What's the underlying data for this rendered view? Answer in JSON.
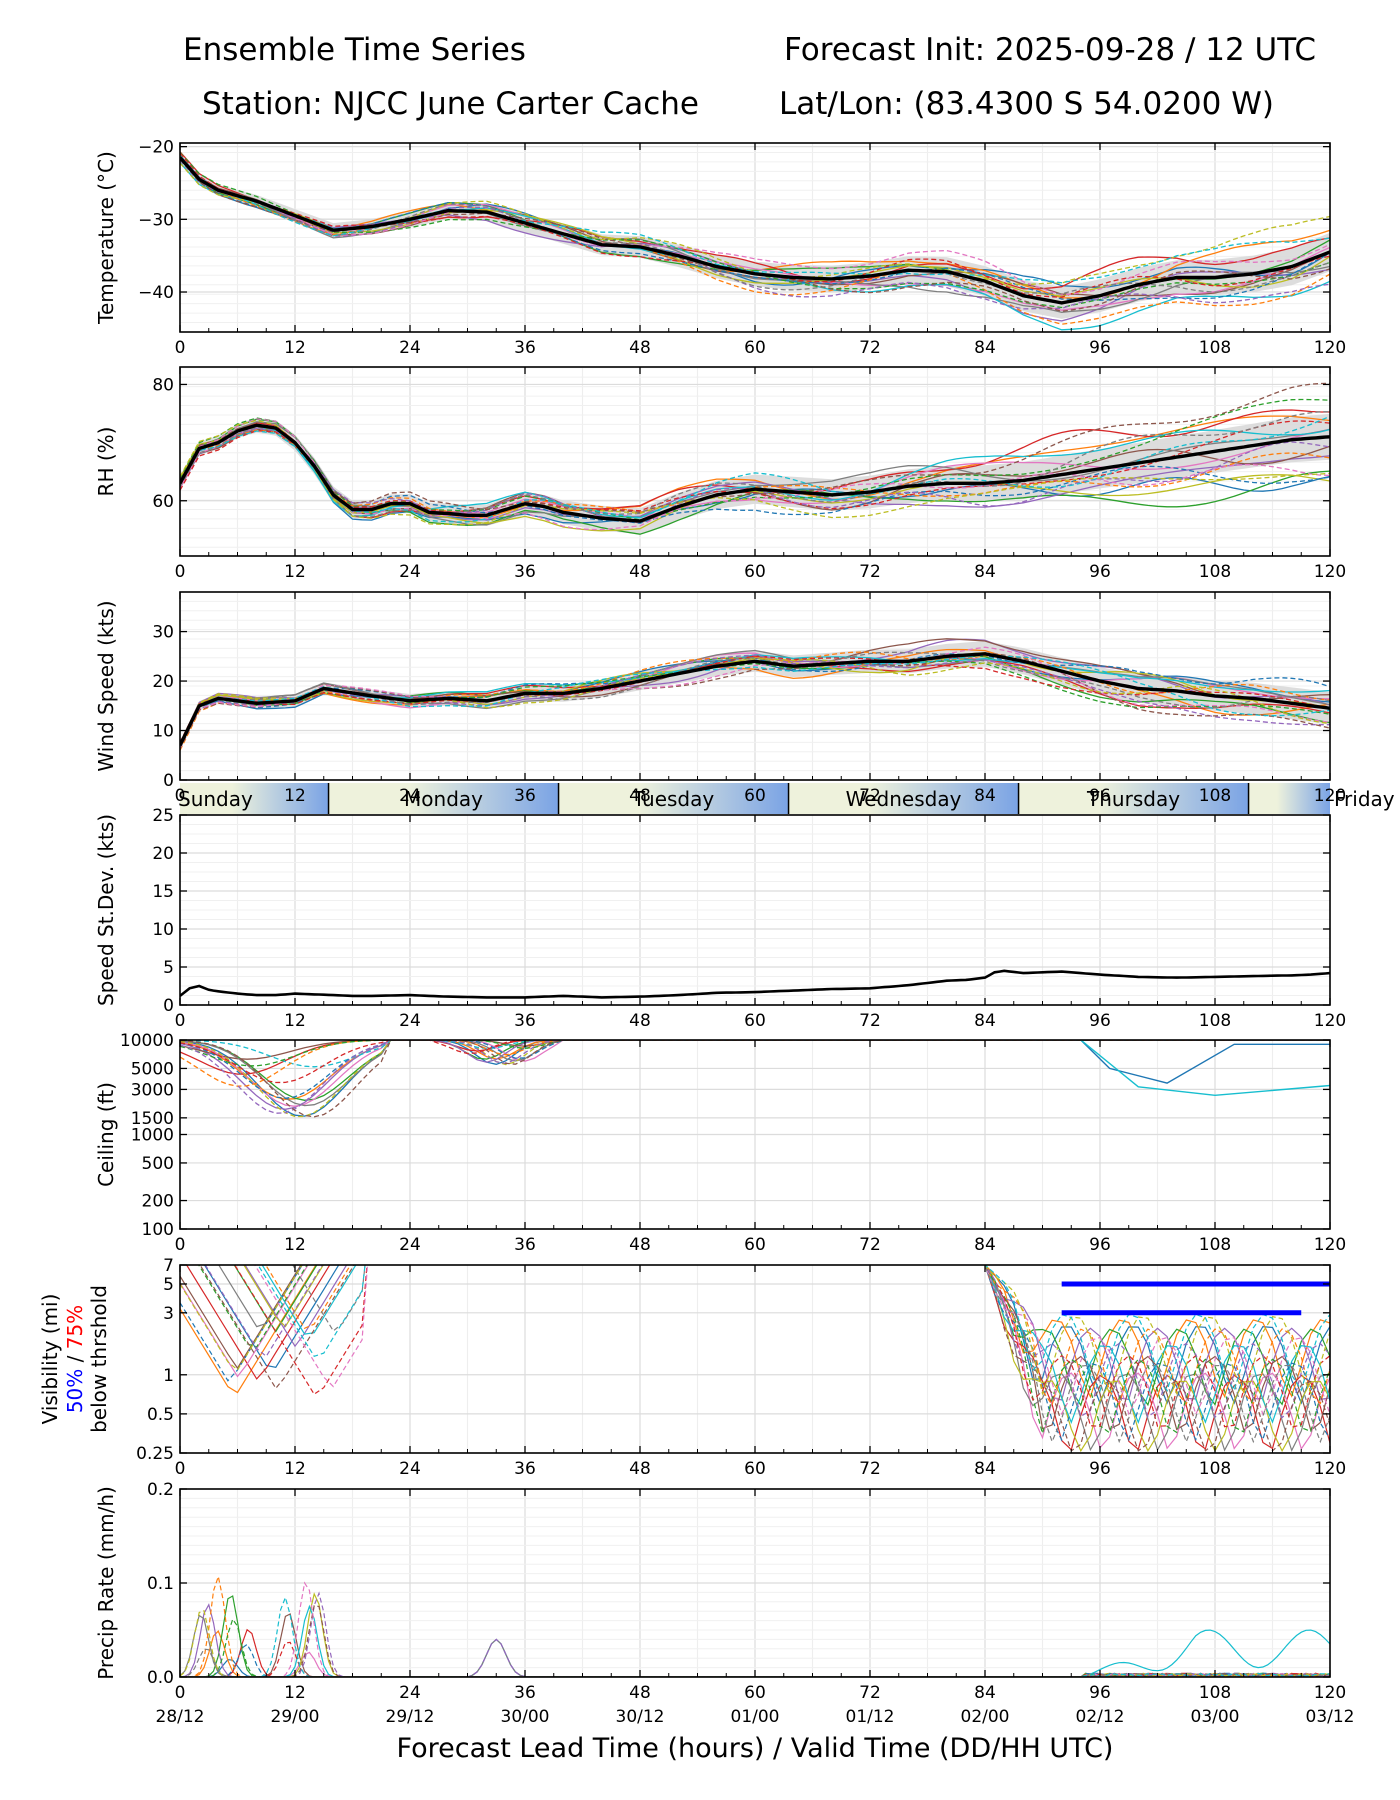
{
  "header": {
    "title_left": "Ensemble Time Series",
    "title_right": "Forecast Init: 2025-09-28 / 12 UTC",
    "station": "Station: NJCC June Carter Cache",
    "latlon": "Lat/Lon: (83.4300 S 54.0200 W)"
  },
  "colors": {
    "members": [
      "#1f77b4",
      "#ff7f0e",
      "#2ca02c",
      "#d62728",
      "#9467bd",
      "#8c564b",
      "#e377c2",
      "#7f7f7f",
      "#bcbd22",
      "#17becf"
    ],
    "mean": "#000000",
    "spread": "#d9d9d9",
    "vis_50": "#0000ff",
    "vis_75": "#ff0000",
    "day_light": "#eef2dc",
    "day_dark": "#7aa3e5"
  },
  "chart_data": {
    "type": "line",
    "description_x": "Forecast Lead Time (hours)",
    "xlabel": "Forecast Lead Time (hours) / Valid Time (DD/HH UTC)",
    "xlim": [
      0,
      120
    ],
    "xticks": [
      0,
      12,
      24,
      36,
      48,
      60,
      72,
      84,
      96,
      108,
      120
    ],
    "xtick_labels": [
      "0",
      "12",
      "24",
      "36",
      "48",
      "60",
      "72",
      "84",
      "96",
      "108",
      "120"
    ],
    "valid_time_labels": [
      "28/12",
      "29/00",
      "29/12",
      "30/00",
      "30/12",
      "01/00",
      "01/12",
      "02/00",
      "02/12",
      "03/00",
      "03/12"
    ],
    "day_band": {
      "labels": [
        "Sunday",
        "Monday",
        "Tuesday",
        "Wednesday",
        "Thursday",
        "Friday"
      ],
      "label_hours": [
        3.5,
        27.5,
        51.5,
        75.5,
        99.5,
        123.5
      ],
      "dividers": [
        15.5,
        39.5,
        63.5,
        87.5,
        111.5
      ]
    },
    "panels": [
      {
        "id": "temperature",
        "ylabel": "Temperature (°C)",
        "ylim": [
          -45.5,
          -19.5
        ],
        "yticks": [
          -40,
          -30,
          -20
        ],
        "ytick_labels": [
          "−40",
          "−30",
          "−20"
        ],
        "scale": "linear",
        "mean": {
          "hours": [
            0,
            2,
            4,
            8,
            12,
            16,
            20,
            24,
            28,
            32,
            36,
            40,
            44,
            48,
            52,
            56,
            60,
            64,
            68,
            72,
            76,
            80,
            84,
            88,
            92,
            96,
            100,
            104,
            108,
            112,
            116,
            120
          ],
          "values": [
            -21.5,
            -24.5,
            -26,
            -27.5,
            -29.5,
            -31.5,
            -31,
            -30,
            -28.8,
            -29,
            -30.5,
            -32,
            -33.5,
            -33.8,
            -35,
            -36.5,
            -37.5,
            -38,
            -38.2,
            -37.8,
            -37,
            -37.2,
            -38.5,
            -40.5,
            -41.5,
            -40.5,
            -39,
            -38,
            -38,
            -37.5,
            -36.5,
            -34.5
          ]
        },
        "spread": 1.2,
        "member_amplitude": 1.6,
        "member_tail_spread": 4
      },
      {
        "id": "rh",
        "ylabel": "RH (%)",
        "ylim": [
          50.5,
          83
        ],
        "yticks": [
          60,
          80
        ],
        "ytick_labels": [
          "60",
          "80"
        ],
        "scale": "linear",
        "mean": {
          "hours": [
            0,
            2,
            4,
            6,
            8,
            10,
            12,
            14,
            16,
            18,
            20,
            22,
            24,
            26,
            28,
            30,
            32,
            34,
            36,
            38,
            40,
            44,
            48,
            52,
            56,
            60,
            64,
            68,
            72,
            76,
            80,
            84,
            88,
            92,
            96,
            100,
            104,
            108,
            112,
            116,
            120
          ],
          "values": [
            63,
            69,
            70,
            72,
            73,
            72.5,
            70,
            66,
            61,
            58.5,
            58.5,
            59.5,
            59.5,
            58,
            57.8,
            57.5,
            57.5,
            58.5,
            59.5,
            59,
            58,
            57,
            56.5,
            59,
            61,
            62,
            61.5,
            61,
            61.5,
            62.5,
            63,
            63,
            63.5,
            64.5,
            65.5,
            66.5,
            67.5,
            68.5,
            69.5,
            70.5,
            71
          ]
        },
        "spread": 1.8,
        "member_amplitude": 2.5,
        "member_tail_spread": 7
      },
      {
        "id": "wind",
        "ylabel": "Wind Speed (kts)",
        "ylim": [
          0,
          38
        ],
        "yticks": [
          0,
          10,
          20,
          30
        ],
        "ytick_labels": [
          "0",
          "10",
          "20",
          "30"
        ],
        "scale": "linear",
        "mean": {
          "hours": [
            0,
            1,
            2,
            4,
            8,
            12,
            15,
            20,
            24,
            28,
            32,
            36,
            40,
            44,
            48,
            52,
            56,
            60,
            64,
            68,
            72,
            76,
            80,
            84,
            88,
            92,
            96,
            100,
            104,
            108,
            112,
            116,
            120
          ],
          "values": [
            7,
            11,
            15,
            16.5,
            15.5,
            16,
            18.5,
            17,
            16,
            16.5,
            16,
            17.5,
            17.5,
            18.5,
            20,
            21.5,
            23,
            24,
            23,
            23.5,
            24,
            24,
            25,
            25.5,
            24,
            22,
            20,
            18.5,
            18,
            17,
            16.5,
            15.5,
            14.5
          ]
        },
        "spread": 1.5,
        "member_amplitude": 2.2,
        "member_tail_spread": 4
      },
      {
        "id": "speed_stdev",
        "ylabel": "Speed St.Dev. (kts)",
        "ylim": [
          0,
          25
        ],
        "yticks": [
          0,
          5,
          10,
          15,
          20,
          25
        ],
        "ytick_labels": [
          "0",
          "5",
          "10",
          "15",
          "20",
          "25"
        ],
        "scale": "linear",
        "mean": {
          "hours": [
            0,
            1,
            2,
            3,
            4,
            6,
            8,
            10,
            12,
            14,
            16,
            18,
            20,
            24,
            28,
            32,
            36,
            40,
            44,
            48,
            52,
            56,
            60,
            64,
            68,
            72,
            76,
            80,
            82,
            84,
            85,
            86,
            88,
            90,
            92,
            96,
            100,
            104,
            108,
            112,
            116,
            118,
            120
          ],
          "values": [
            1.2,
            2.2,
            2.5,
            2,
            1.8,
            1.5,
            1.3,
            1.3,
            1.5,
            1.4,
            1.3,
            1.2,
            1.2,
            1.3,
            1.1,
            1.0,
            1.0,
            1.2,
            1.0,
            1.1,
            1.3,
            1.6,
            1.7,
            1.9,
            2.1,
            2.2,
            2.6,
            3.2,
            3.3,
            3.6,
            4.3,
            4.5,
            4.2,
            4.3,
            4.4,
            4.0,
            3.7,
            3.6,
            3.7,
            3.8,
            3.9,
            4.0,
            4.2
          ]
        }
      },
      {
        "id": "ceiling",
        "ylabel": "Ceiling (ft)",
        "ylim": [
          100,
          10000
        ],
        "yticks": [
          100,
          200,
          500,
          1000,
          1500,
          3000,
          5000,
          10000
        ],
        "ytick_labels": [
          "100",
          "200",
          "500",
          "1000",
          "1500",
          "3000",
          "5000",
          "10000"
        ],
        "scale": "log"
      },
      {
        "id": "visibility",
        "ylabel": "Visibility (mi)",
        "ylabel_50": "50%",
        "ylabel_sep": "/",
        "ylabel_75": "75%",
        "ylabel_sub": "below thrshold",
        "ylim": [
          0.25,
          7
        ],
        "yticks": [
          0.25,
          0.5,
          1,
          3,
          5,
          7
        ],
        "ytick_labels": [
          "0.25",
          "0.5",
          "1",
          "3",
          "5",
          "7"
        ],
        "scale": "log",
        "threshold_lines": [
          {
            "value": 5,
            "from": 92,
            "to": 120
          },
          {
            "value": 3,
            "from": 92,
            "to": 117
          }
        ]
      },
      {
        "id": "precip",
        "ylabel": "Precip Rate (mm/h)",
        "ylim": [
          0,
          0.2
        ],
        "yticks": [
          0.0,
          0.1,
          0.2
        ],
        "ytick_labels": [
          "0.0",
          "0.1",
          "0.2"
        ],
        "scale": "linear"
      }
    ]
  }
}
